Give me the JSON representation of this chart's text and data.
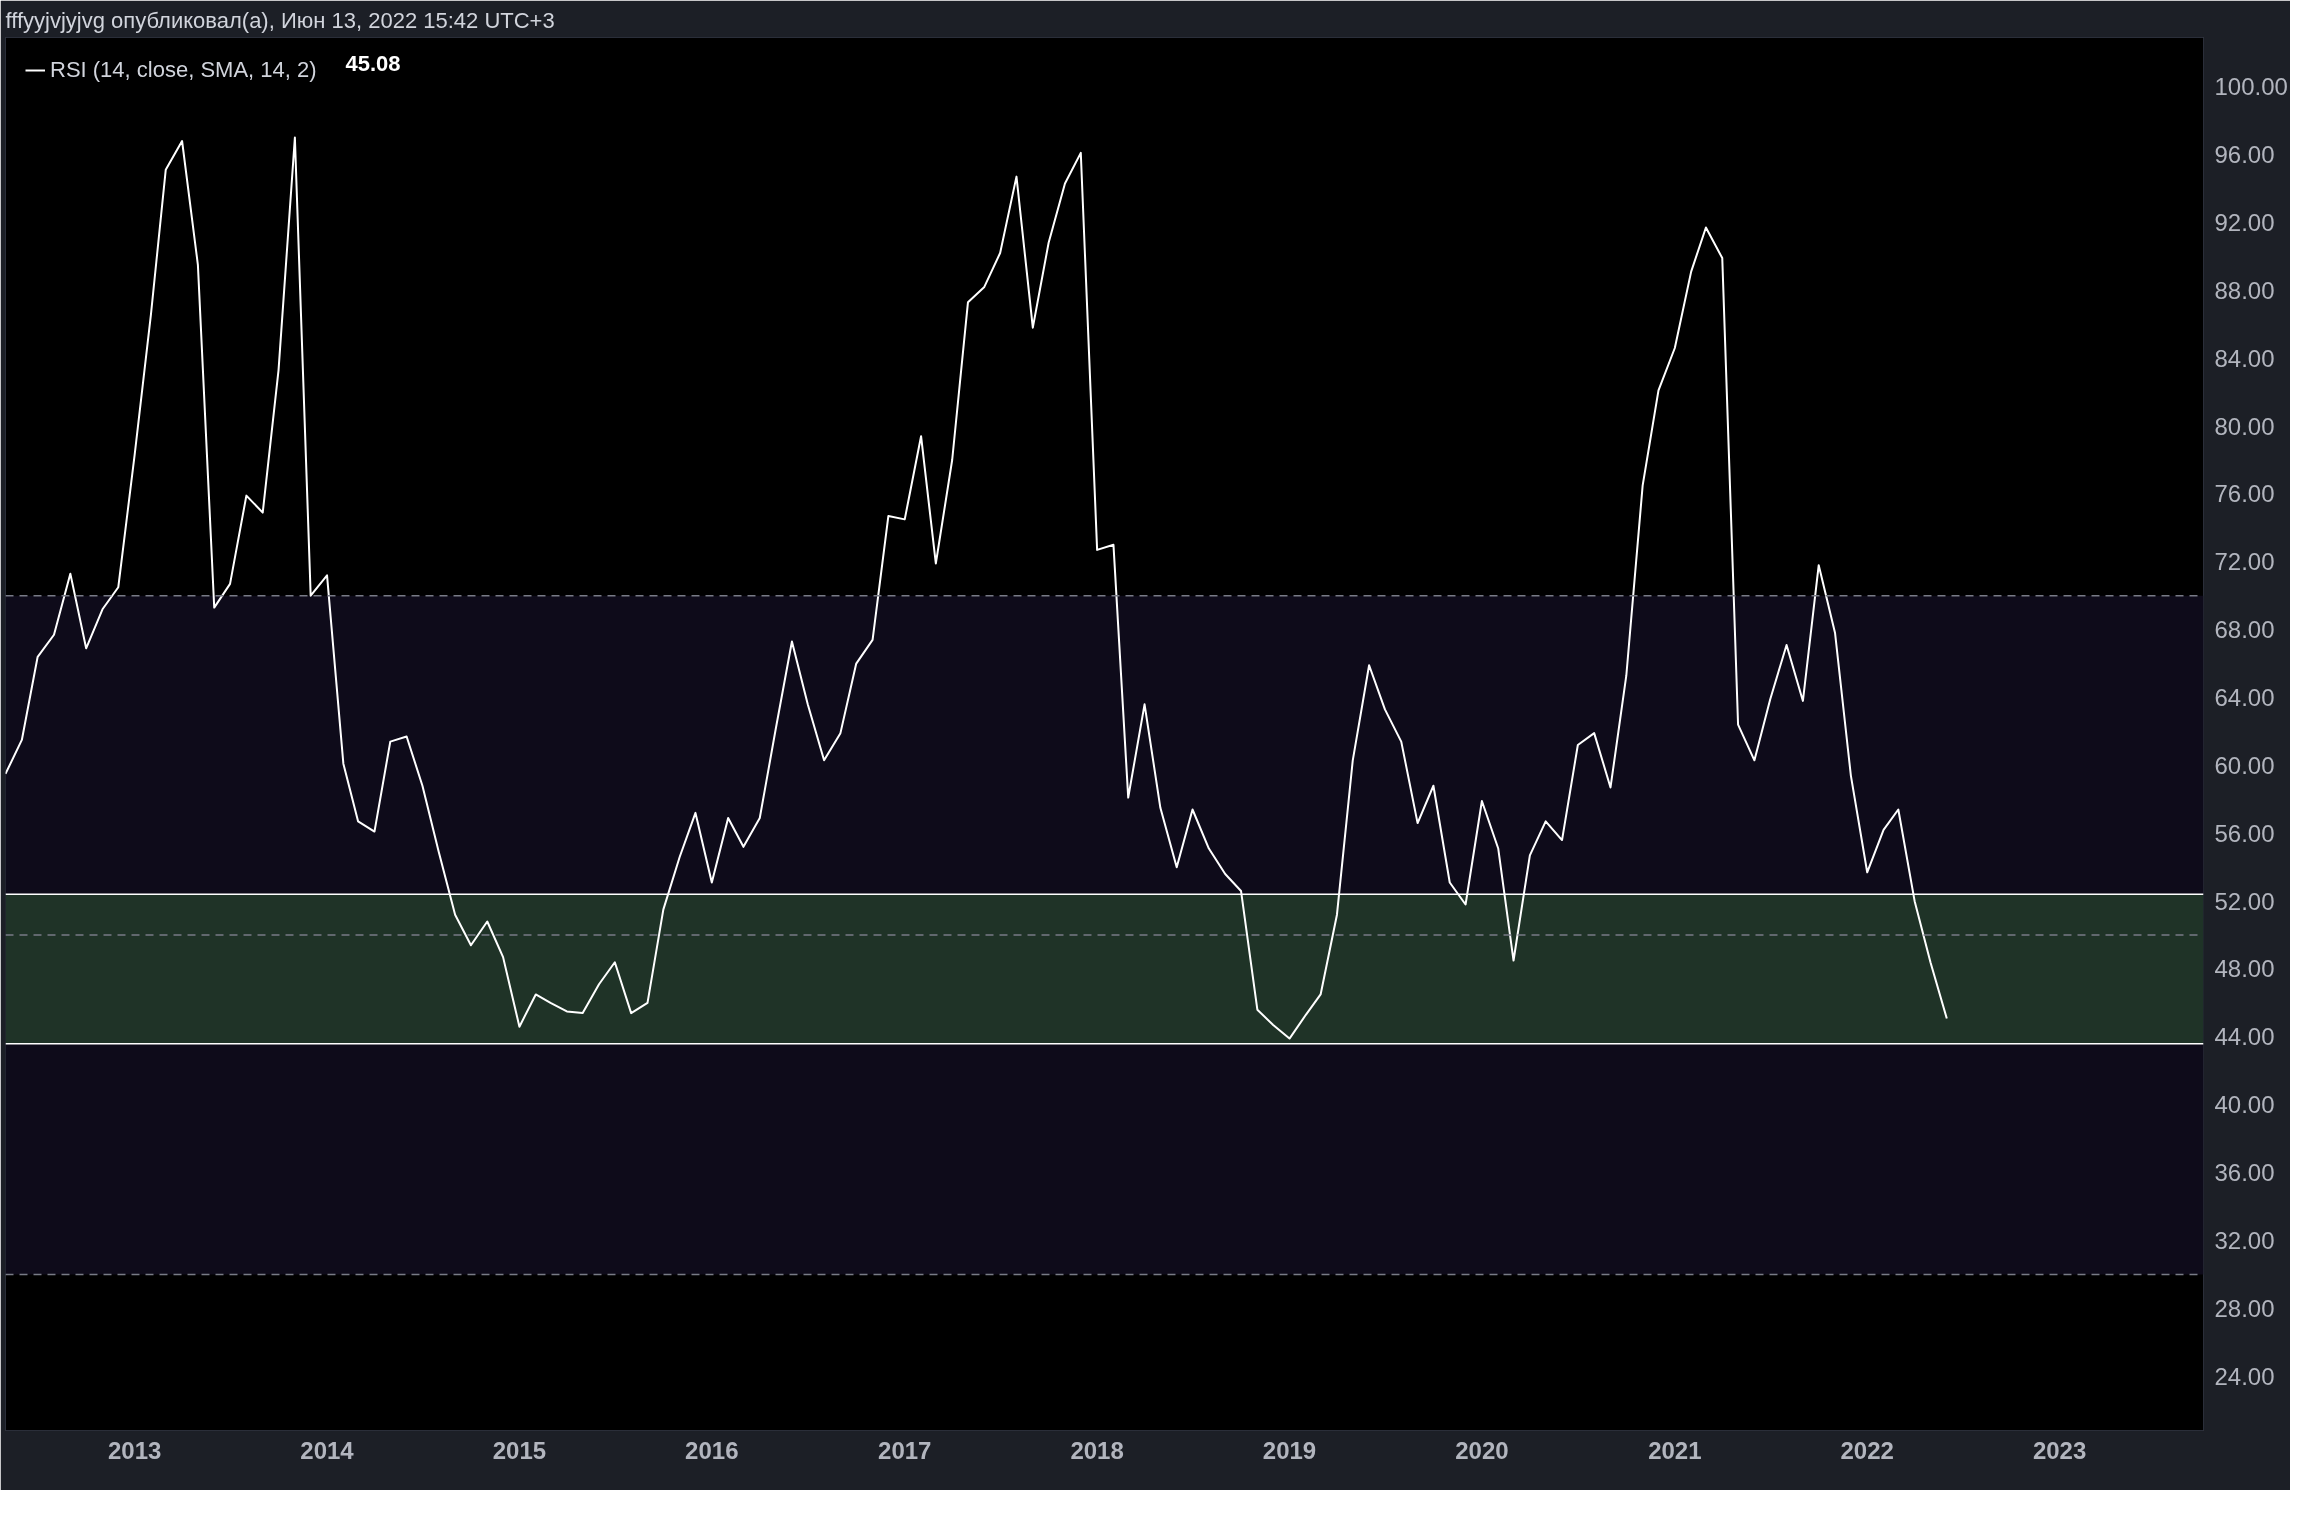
{
  "chart_data": {
    "type": "line",
    "title": "fffyyjvjyjvg опубликовал(а), Июн 13, 2022 15:42 UTC+3",
    "x": [
      "2012-05",
      "2012-06",
      "2012-07",
      "2012-08",
      "2012-09",
      "2012-10",
      "2012-11",
      "2012-12",
      "2013-01",
      "2013-02",
      "2013-03",
      "2013-04",
      "2013-05",
      "2013-06",
      "2013-07",
      "2013-08",
      "2013-09",
      "2013-10",
      "2013-11",
      "2013-12",
      "2014-01",
      "2014-02",
      "2014-03",
      "2014-04",
      "2014-05",
      "2014-06",
      "2014-07",
      "2014-08",
      "2014-09",
      "2014-10",
      "2014-11",
      "2014-12",
      "2015-01",
      "2015-02",
      "2015-03",
      "2015-04",
      "2015-05",
      "2015-06",
      "2015-07",
      "2015-08",
      "2015-09",
      "2015-10",
      "2015-11",
      "2015-12",
      "2016-01",
      "2016-02",
      "2016-03",
      "2016-04",
      "2016-05",
      "2016-06",
      "2016-07",
      "2016-08",
      "2016-09",
      "2016-10",
      "2016-11",
      "2016-12",
      "2017-01",
      "2017-02",
      "2017-03",
      "2017-04",
      "2017-05",
      "2017-06",
      "2017-07",
      "2017-08",
      "2017-09",
      "2017-10",
      "2017-11",
      "2017-12",
      "2018-01",
      "2018-02",
      "2018-03",
      "2018-04",
      "2018-05",
      "2018-06",
      "2018-07",
      "2018-08",
      "2018-09",
      "2018-10",
      "2018-11",
      "2018-12",
      "2019-01",
      "2019-02",
      "2019-03",
      "2019-04",
      "2019-05",
      "2019-06",
      "2019-07",
      "2019-08",
      "2019-09",
      "2019-10",
      "2019-11",
      "2019-12",
      "2020-01",
      "2020-02",
      "2020-03",
      "2020-04",
      "2020-05",
      "2020-06",
      "2020-07",
      "2020-08",
      "2020-09",
      "2020-10",
      "2020-11",
      "2020-12",
      "2021-01",
      "2021-02",
      "2021-03",
      "2021-04",
      "2021-05",
      "2021-06",
      "2021-07",
      "2021-08",
      "2021-09",
      "2021-10",
      "2021-11",
      "2021-12",
      "2022-01",
      "2022-02",
      "2022-03",
      "2022-04",
      "2022-05",
      "2022-06"
    ],
    "series": [
      {
        "name": "RSI (14, close, SMA, 14, 2)",
        "color": "#ffffff",
        "values": [
          59.5,
          61.5,
          66.4,
          67.7,
          71.3,
          66.9,
          69.2,
          70.5,
          78.3,
          86.6,
          95.1,
          96.8,
          89.5,
          69.3,
          70.7,
          75.9,
          74.9,
          83.3,
          97.0,
          70.0,
          71.2,
          60.1,
          56.7,
          56.1,
          61.4,
          61.7,
          58.8,
          54.9,
          51.2,
          49.4,
          50.8,
          48.7,
          44.6,
          46.5,
          46.0,
          45.5,
          45.4,
          47.1,
          48.4,
          45.4,
          46.0,
          51.5,
          54.6,
          57.2,
          53.1,
          56.9,
          55.2,
          56.9,
          62.1,
          67.3,
          63.6,
          60.3,
          61.9,
          66.0,
          67.4,
          74.7,
          74.5,
          79.4,
          71.9,
          78.0,
          87.3,
          88.2,
          90.2,
          94.7,
          85.8,
          90.8,
          94.3,
          96.1,
          72.7,
          73.0,
          58.1,
          63.6,
          57.5,
          54.0,
          57.4,
          55.1,
          53.6,
          52.6,
          45.6,
          44.7,
          43.9,
          45.3,
          46.5,
          51.2,
          60.3,
          65.9,
          63.3,
          61.4,
          56.6,
          58.8,
          53.1,
          51.8,
          57.9,
          55.1,
          48.5,
          54.7,
          56.7,
          55.6,
          61.2,
          61.9,
          58.7,
          65.3,
          76.5,
          82.1,
          84.6,
          89.1,
          91.7,
          89.9,
          62.4,
          60.3,
          63.9,
          67.1,
          63.8,
          71.8,
          67.8,
          59.4,
          53.7,
          56.2,
          57.4,
          52.0,
          48.4,
          45.08
        ]
      }
    ],
    "annotations": [
      "45.08"
    ],
    "xlim": [
      "2012-05",
      "2023-10"
    ],
    "xticks": [
      {
        "value": "2013-01",
        "label": "2013"
      },
      {
        "value": "2014-01",
        "label": "2014"
      },
      {
        "value": "2015-01",
        "label": "2015"
      },
      {
        "value": "2016-01",
        "label": "2016"
      },
      {
        "value": "2017-01",
        "label": "2017"
      },
      {
        "value": "2018-01",
        "label": "2018"
      },
      {
        "value": "2019-01",
        "label": "2019"
      },
      {
        "value": "2020-01",
        "label": "2020"
      },
      {
        "value": "2021-01",
        "label": "2021"
      },
      {
        "value": "2022-01",
        "label": "2022"
      },
      {
        "value": "2023-01",
        "label": "2023"
      }
    ],
    "ylim": [
      20.8,
      102.9
    ],
    "yticks": [
      {
        "value": 24,
        "label": "24.00"
      },
      {
        "value": 28,
        "label": "28.00"
      },
      {
        "value": 32,
        "label": "32.00"
      },
      {
        "value": 36,
        "label": "36.00"
      },
      {
        "value": 40,
        "label": "40.00"
      },
      {
        "value": 44,
        "label": "44.00"
      },
      {
        "value": 48,
        "label": "48.00"
      },
      {
        "value": 52,
        "label": "52.00"
      },
      {
        "value": 56,
        "label": "56.00"
      },
      {
        "value": 60,
        "label": "60.00"
      },
      {
        "value": 64,
        "label": "64.00"
      },
      {
        "value": 68,
        "label": "68.00"
      },
      {
        "value": 72,
        "label": "72.00"
      },
      {
        "value": 76,
        "label": "76.00"
      },
      {
        "value": 80,
        "label": "80.00"
      },
      {
        "value": 84,
        "label": "84.00"
      },
      {
        "value": 88,
        "label": "88.00"
      },
      {
        "value": 92,
        "label": "92.00"
      },
      {
        "value": 96,
        "label": "96.00"
      },
      {
        "value": 100,
        "label": "100.00"
      }
    ],
    "bands": [
      {
        "axis": "y",
        "from": 30,
        "to": 70,
        "color": "#0e0b1a"
      },
      {
        "axis": "y",
        "from": 43.6,
        "to": 52.4,
        "color": "#1f3327"
      }
    ],
    "ref_lines": [
      {
        "axis": "y",
        "value": 70,
        "color": "#787b86",
        "line_style": "dashed"
      },
      {
        "axis": "y",
        "value": 50,
        "color": "#787b86",
        "line_style": "dashed"
      },
      {
        "axis": "y",
        "value": 30,
        "color": "#787b86",
        "line_style": "dashed"
      },
      {
        "axis": "y",
        "value": 43.6,
        "color": "#ffffff",
        "line_style": "solid"
      },
      {
        "axis": "y",
        "value": 52.4,
        "color": "#ffffff",
        "line_style": "solid"
      }
    ],
    "grid": false,
    "legend": "top left",
    "marker": "none",
    "line_style": "solid"
  }
}
